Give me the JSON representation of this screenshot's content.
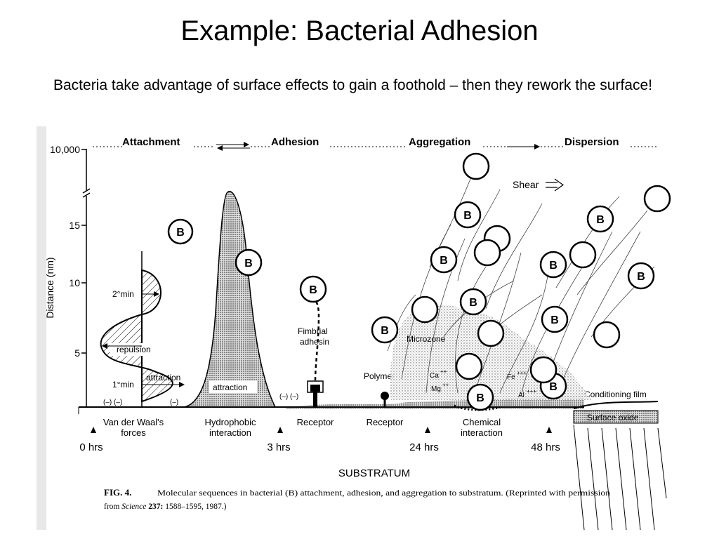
{
  "slide": {
    "title": "Example: Bacterial Adhesion",
    "text": "Bacteria take advantage of surface effects to gain a foothold – then they rework the surface!"
  },
  "figure": {
    "stages": [
      "Attachment",
      "Adhesion",
      "Aggregation",
      "Dispersion"
    ],
    "y_axis_label": "Distance (nm)",
    "y_ticks": [
      "10,000",
      "15",
      "10",
      "5"
    ],
    "bacterium_label": "B",
    "labels": {
      "shear": "Shear",
      "two_min": "2°min",
      "one_min": "1°min",
      "repulsion": "repulsion",
      "attraction_arrow": "attraction",
      "attraction_peak": "attraction",
      "fimbrial": "Fimbrial",
      "adhesin": "adhesin",
      "microzone": "Microzone",
      "polymer": "Polymer",
      "ca": "Ca",
      "mg": "Mg",
      "fe": "Fe",
      "al": "Al",
      "conditioning_film": "Conditioning film",
      "surface_oxide": "Surface oxide",
      "substratum": "SUBSTRATUM",
      "charge_pair": "(–)  (–)",
      "charge_single": "(–)"
    },
    "mechanisms": [
      {
        "line1": "Van der Waal's",
        "line2": "forces"
      },
      {
        "line1": "Hydrophobic",
        "line2": "interaction"
      },
      {
        "line1": "Receptor",
        "line2": ""
      },
      {
        "line1": "Receptor",
        "line2": ""
      },
      {
        "line1": "Chemical",
        "line2": "interaction"
      }
    ],
    "time_marks": [
      "0 hrs",
      "3 hrs",
      "24 hrs",
      "48 hrs"
    ],
    "caption": {
      "fig": "FIG. 4.",
      "line1": "Molecular sequences in bacterial (B) attachment, adhesion, and aggregation to substratum. (Reprinted with permission",
      "line2_prefix": "from",
      "journal": "Science",
      "ref": "237:",
      "line2_rest": "1588–1595, 1987.)"
    }
  }
}
